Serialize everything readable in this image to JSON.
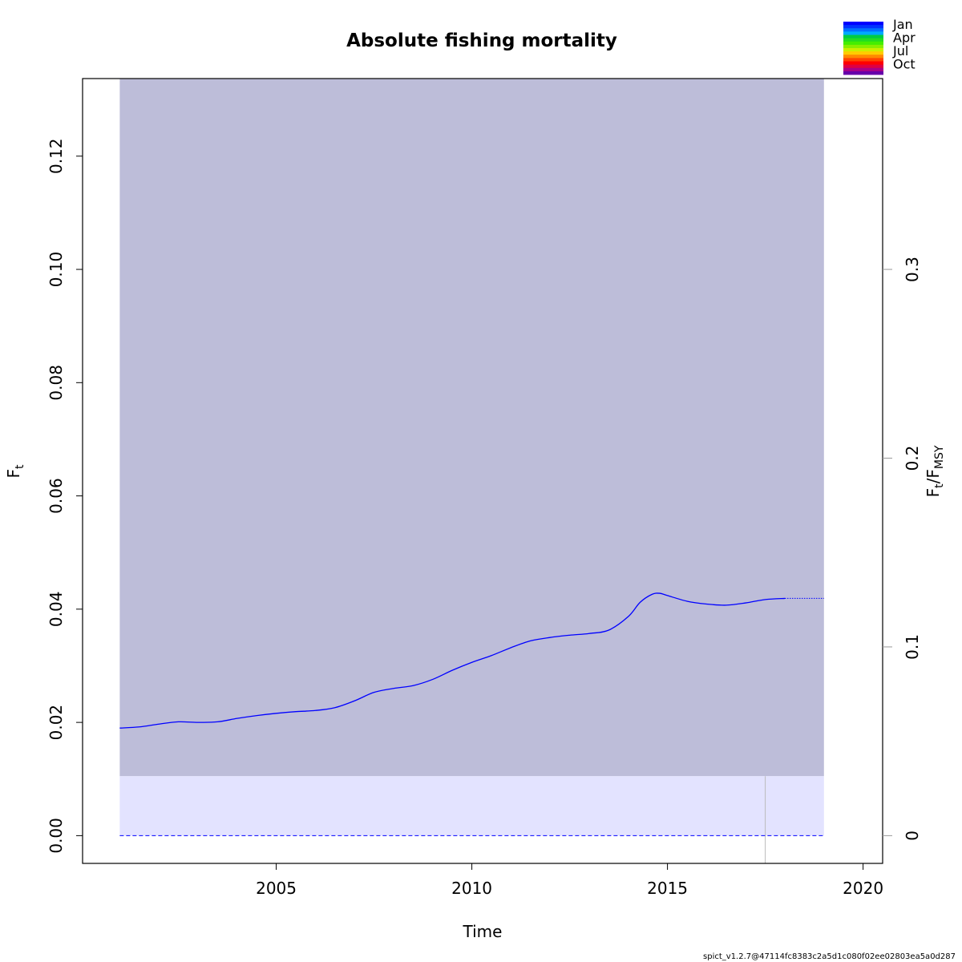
{
  "chart_data": {
    "type": "line",
    "title": "Absolute fishing mortality",
    "xlabel": "Time",
    "ylabel_left": {
      "main": "F",
      "sub": "t"
    },
    "ylabel_right": {
      "main": "F",
      "sub": "t",
      "sep": "/F",
      "sub2": "MSY"
    },
    "xlim": [
      2000.05,
      2020.5
    ],
    "ylim": [
      -0.0049,
      0.1337
    ],
    "x_ticks": [
      2005,
      2010,
      2015,
      2020
    ],
    "x_tick_labels": [
      "2005",
      "2010",
      "2015",
      "2020"
    ],
    "y_ticks": [
      0.0,
      0.02,
      0.04,
      0.06,
      0.08,
      0.1,
      0.12
    ],
    "y_tick_labels": [
      "0.00",
      "0.02",
      "0.04",
      "0.06",
      "0.08",
      "0.10",
      "0.12"
    ],
    "y2_ticks": [
      0,
      0.1,
      0.2,
      0.3
    ],
    "y2_tick_labels": [
      "0",
      "0.1",
      "0.2",
      "0.3"
    ],
    "fmsy_ratio_factor": 3.0,
    "ci_band": {
      "x_start": 2001.0,
      "x_end": 2019.0,
      "lower": 0.0,
      "upper": 0.1337,
      "color": "#bdbdd9"
    },
    "fmsy_band": {
      "x_start": 2001.0,
      "x_end": 2019.0,
      "lower": 0.0,
      "upper": 0.0105,
      "color": "#e3e3ff"
    },
    "fmsy_line": {
      "value": 0.0,
      "x_start": 2001.0,
      "x_end": 2019.0,
      "color": "#0000ff"
    },
    "last_obs_marker": {
      "x": 2017.5,
      "color": "#bbbbbb"
    },
    "estimate": {
      "name": "F",
      "color": "#0000ff",
      "x": [
        2001.0,
        2001.5,
        2002.0,
        2002.5,
        2003.0,
        2003.5,
        2004.0,
        2004.5,
        2005.0,
        2005.5,
        2006.0,
        2006.5,
        2007.0,
        2007.5,
        2008.0,
        2008.5,
        2009.0,
        2009.5,
        2010.0,
        2010.5,
        2011.0,
        2011.5,
        2012.0,
        2012.5,
        2013.0,
        2013.5,
        2014.0,
        2014.3,
        2014.6,
        2014.8,
        2015.0,
        2015.5,
        2016.0,
        2016.5,
        2017.0,
        2017.5,
        2018.0
      ],
      "y": [
        0.019,
        0.0192,
        0.0197,
        0.0201,
        0.02,
        0.0201,
        0.0207,
        0.0212,
        0.0216,
        0.0219,
        0.0221,
        0.0226,
        0.0238,
        0.0253,
        0.026,
        0.0265,
        0.0276,
        0.0292,
        0.0306,
        0.0318,
        0.0332,
        0.0344,
        0.035,
        0.0354,
        0.0357,
        0.0363,
        0.0387,
        0.0412,
        0.0426,
        0.0428,
        0.0424,
        0.0414,
        0.0409,
        0.0407,
        0.0411,
        0.0417,
        0.0419
      ]
    },
    "forecast": {
      "color": "#0000ff",
      "x": [
        2018.0,
        2019.0
      ],
      "y": [
        0.0419,
        0.0419
      ]
    },
    "legend": {
      "position": "top-right",
      "labels": [
        "Jan",
        "Apr",
        "Jul",
        "Oct"
      ],
      "colors": [
        "#0000ff",
        "#0033ff",
        "#0070ff",
        "#00aaff",
        "#00cc44",
        "#22dd22",
        "#44ee00",
        "#88ee00",
        "#ccee00",
        "#ffcc00",
        "#ff8800",
        "#ff4400",
        "#ff0000",
        "#dd0044",
        "#aa0088",
        "#6600aa"
      ]
    },
    "footnote": "spict_v1.2.7@47114fc8383c2a5d1c080f02ee02803ea5a0d287"
  }
}
